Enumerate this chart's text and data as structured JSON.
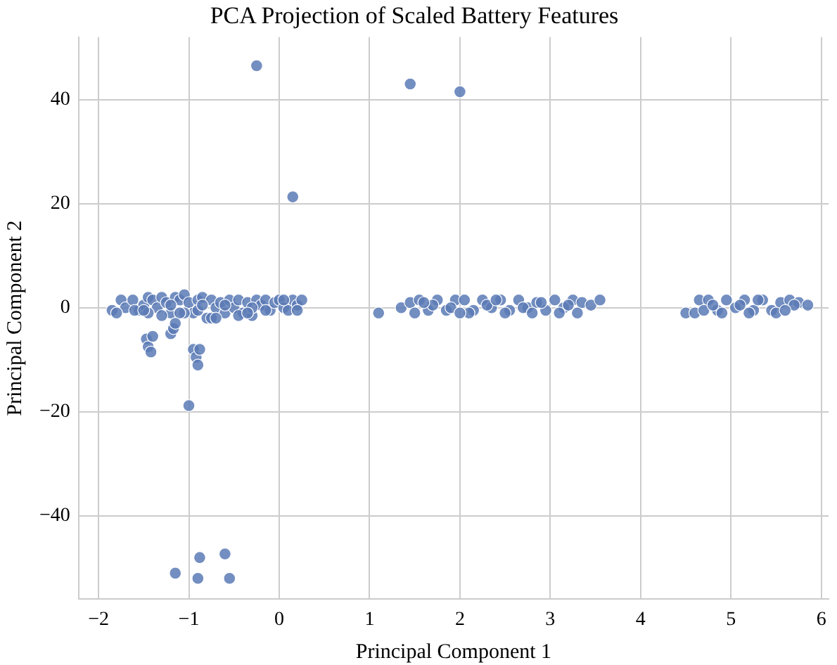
{
  "chart_data": {
    "type": "scatter",
    "title": "PCA Projection of Scaled Battery Features",
    "xlabel": "Principal Component 1",
    "ylabel": "Principal Component 2",
    "xlim": [
      -2.22,
      6.08
    ],
    "ylim": [
      -56,
      52
    ],
    "xticks": [
      -2,
      -1,
      0,
      1,
      2,
      3,
      4,
      5,
      6
    ],
    "yticks": [
      -40,
      -20,
      0,
      20,
      40
    ],
    "grid": true,
    "marker": "circle",
    "series": [
      {
        "color": "#5a7ab5",
        "x": [
          -1.85,
          -1.75,
          -1.7,
          -1.62,
          -1.55,
          -1.5,
          -1.45,
          -1.4,
          -1.35,
          -1.3,
          -1.25,
          -1.2,
          -1.15,
          -1.1,
          -1.05,
          -1.0,
          -0.95,
          -0.9,
          -0.85,
          -0.8,
          -0.75,
          -0.7,
          -0.65,
          -0.6,
          -0.55,
          -0.5,
          -0.45,
          -0.4,
          -0.35,
          -0.3,
          -0.25,
          -0.2,
          -0.15,
          -0.1,
          -0.05,
          0.0,
          0.05,
          0.1,
          0.15,
          0.2,
          0.25,
          -1.8,
          -1.6,
          -1.45,
          -1.3,
          -1.2,
          -1.05,
          -0.9,
          -0.75,
          -0.6,
          -0.45,
          -0.3,
          -0.15,
          0.05,
          0.2,
          -1.5,
          -1.1,
          -0.85,
          -0.7,
          -0.35,
          -1.47,
          -1.45,
          -1.42,
          -1.4,
          -1.2,
          -1.17,
          -1.15,
          -0.95,
          -0.92,
          -0.9,
          -0.88,
          -1.0,
          -0.25,
          0.15,
          1.45,
          2.0,
          -1.15,
          -0.88,
          -0.6,
          -0.9,
          -0.55,
          1.1,
          1.35,
          1.45,
          1.55,
          1.65,
          1.75,
          1.85,
          1.95,
          2.05,
          2.15,
          2.25,
          2.35,
          2.45,
          2.55,
          2.65,
          2.75,
          2.85,
          2.95,
          3.05,
          3.15,
          3.25,
          3.35,
          3.45,
          3.55,
          1.5,
          1.7,
          1.9,
          2.1,
          2.3,
          2.5,
          2.7,
          2.9,
          3.1,
          3.3,
          1.6,
          2.0,
          2.4,
          2.8,
          3.2,
          4.5,
          4.6,
          4.65,
          4.75,
          4.85,
          4.95,
          5.05,
          5.15,
          5.25,
          5.35,
          5.45,
          5.55,
          5.65,
          5.75,
          5.85,
          4.7,
          4.9,
          5.1,
          5.3,
          5.5,
          5.7,
          4.8,
          5.2,
          5.6
        ],
        "values": [
          -0.5,
          1.5,
          0,
          1.5,
          -0.5,
          0.5,
          2,
          1.5,
          0,
          2,
          1,
          -1,
          2,
          1.5,
          2.5,
          1,
          -1,
          1.5,
          2,
          -2,
          1.5,
          0,
          1,
          -1,
          1.5,
          0,
          1.5,
          -1,
          1,
          -1.5,
          1.5,
          0.5,
          1.5,
          -0.5,
          1,
          1.5,
          0,
          -0.5,
          1.5,
          0.5,
          1.5,
          -1,
          -0.5,
          -1,
          -1.5,
          0.5,
          -1,
          -0.5,
          -2,
          0.5,
          -1.5,
          0,
          -0.5,
          1.5,
          -0.5,
          -0.5,
          -1,
          0.5,
          -2,
          -1,
          -6,
          -7.5,
          -8.5,
          -5.5,
          -5,
          -4,
          -3,
          -8,
          -9.5,
          -11,
          -8,
          -18.8,
          46.5,
          21.3,
          43,
          41.5,
          -51,
          -48,
          -47.3,
          -52,
          -52,
          -1,
          0,
          1,
          1.5,
          -0.5,
          1.5,
          -0.5,
          1.5,
          1.5,
          -0.5,
          1.5,
          0,
          1.5,
          -0.5,
          1.5,
          0,
          1,
          -0.5,
          1.5,
          0,
          1.5,
          1,
          0.5,
          1.5,
          -1,
          0.5,
          0,
          -1,
          0.5,
          -1,
          0,
          1,
          -1,
          -1,
          1,
          -1,
          1.5,
          -1,
          0.5,
          -1,
          -1,
          1.5,
          1.5,
          -0.5,
          1.5,
          0,
          1.5,
          -0.5,
          1.5,
          -0.5,
          1,
          1.5,
          1,
          0.5,
          -0.5,
          -1,
          0.5,
          1.5,
          -1,
          0.5,
          0.5,
          -1,
          -0.5
        ]
      }
    ]
  }
}
